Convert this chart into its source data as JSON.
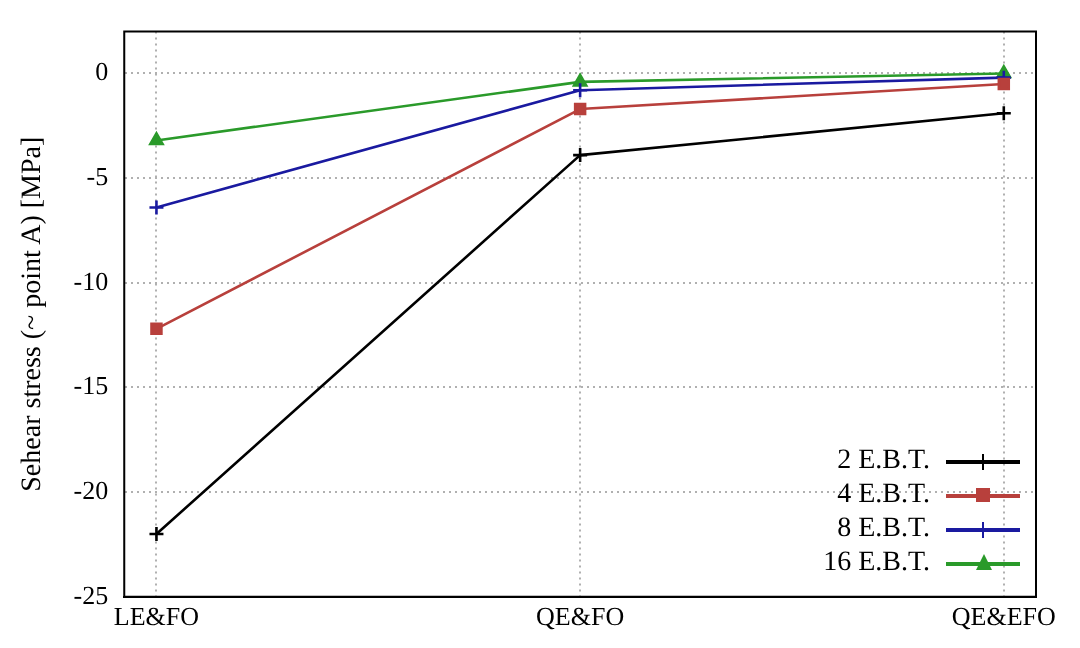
{
  "chart_data": {
    "type": "line",
    "ylabel": "Sehear stress (~ point A) [MPa]",
    "categories": [
      "LE&FO",
      "QE&FO",
      "QE&EFO"
    ],
    "series": [
      {
        "name": "2 E.B.T.",
        "color": "#000000",
        "marker": "cross",
        "values": [
          -22.0,
          -3.9,
          -1.9
        ]
      },
      {
        "name": "4 E.B.T.",
        "color": "#b8403c",
        "marker": "square",
        "values": [
          -12.2,
          -1.7,
          -0.5
        ]
      },
      {
        "name": "8 E.B.T.",
        "color": "#1a1aa0",
        "marker": "cross",
        "values": [
          -6.4,
          -0.8,
          -0.2
        ]
      },
      {
        "name": "16 E.B.T.",
        "color": "#2a9a2a",
        "marker": "triangle",
        "values": [
          -3.2,
          -0.4,
          0
        ]
      }
    ],
    "ylim": [
      -25,
      2
    ],
    "yticks": [
      0,
      -5,
      -10,
      -15,
      -20,
      -25
    ],
    "grid": true,
    "legend": "bottom right",
    "line_style": "solid"
  }
}
